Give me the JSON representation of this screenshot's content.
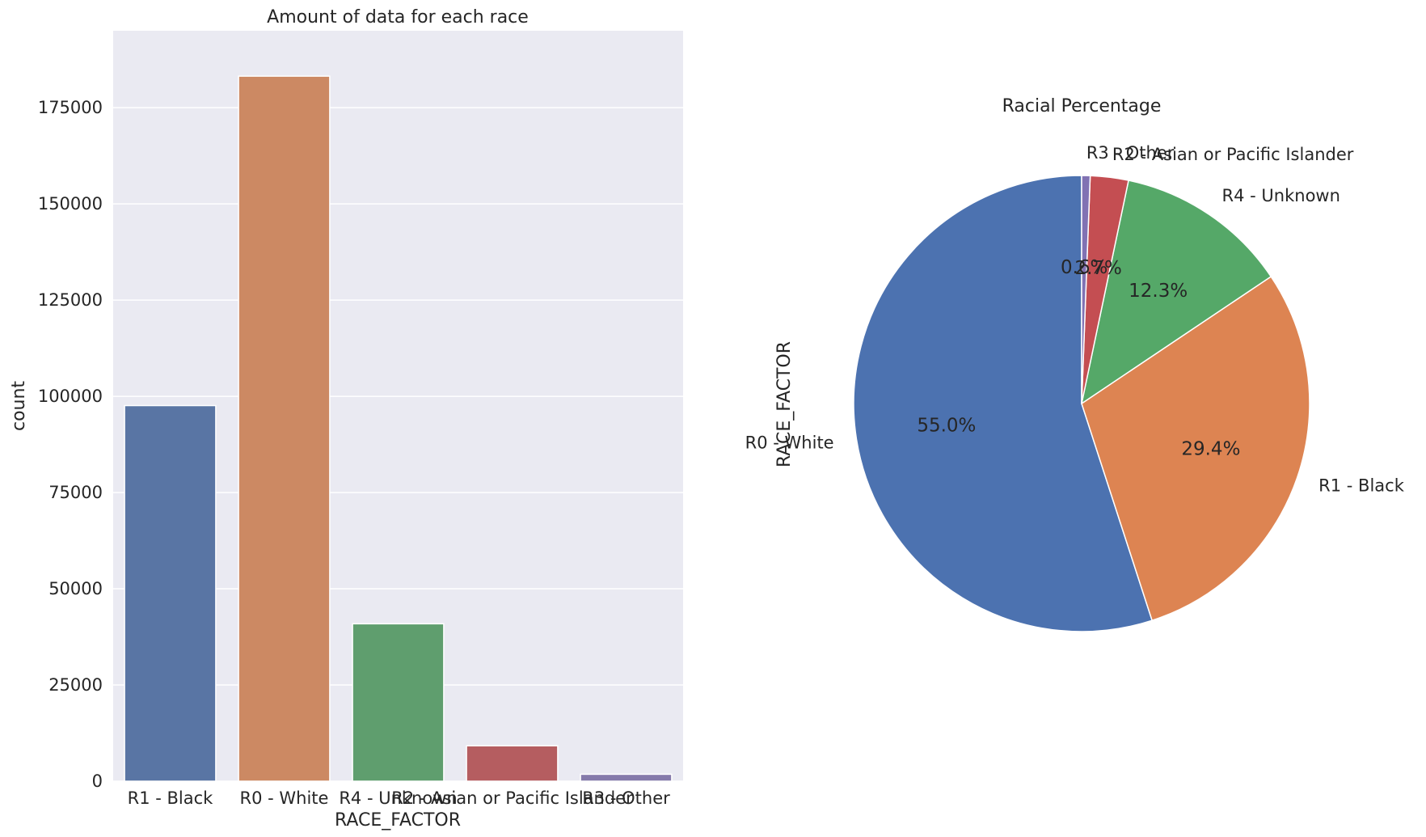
{
  "chart_data": [
    {
      "type": "bar",
      "title": "Amount of data for each race",
      "xlabel": "RACE_FACTOR",
      "ylabel": "count",
      "categories": [
        "R1 - Black",
        "R0 - White",
        "R4 - Unknown",
        "R2 - Asian or Pacific Islander",
        "R3 - Other"
      ],
      "values": [
        97600,
        183200,
        40900,
        9200,
        1800
      ],
      "ylim": [
        0,
        195000
      ],
      "yticks": [
        0,
        25000,
        50000,
        75000,
        100000,
        125000,
        150000,
        175000
      ],
      "colors": [
        "#5975a4",
        "#cc8963",
        "#5f9e6e",
        "#b55d60",
        "#857aab"
      ],
      "grid": true,
      "background": "#eaeaf2"
    },
    {
      "type": "pie",
      "title": "Racial Percentage",
      "ylabel": "RACE_FACTOR",
      "labels": [
        "R0 - White",
        "R1 - Black",
        "R4 - Unknown",
        "R2 - Asian or Pacific Islander",
        "R3 - Other"
      ],
      "values": [
        55.0,
        29.4,
        12.3,
        2.7,
        0.6
      ],
      "pct_labels": [
        "55.0%",
        "29.4%",
        "12.3%",
        "2.7%",
        "0.6%"
      ],
      "colors": [
        "#4c72b0",
        "#dd8452",
        "#55a868",
        "#c44e52",
        "#8172b3"
      ],
      "startangle": 90,
      "counterclock": true
    }
  ]
}
